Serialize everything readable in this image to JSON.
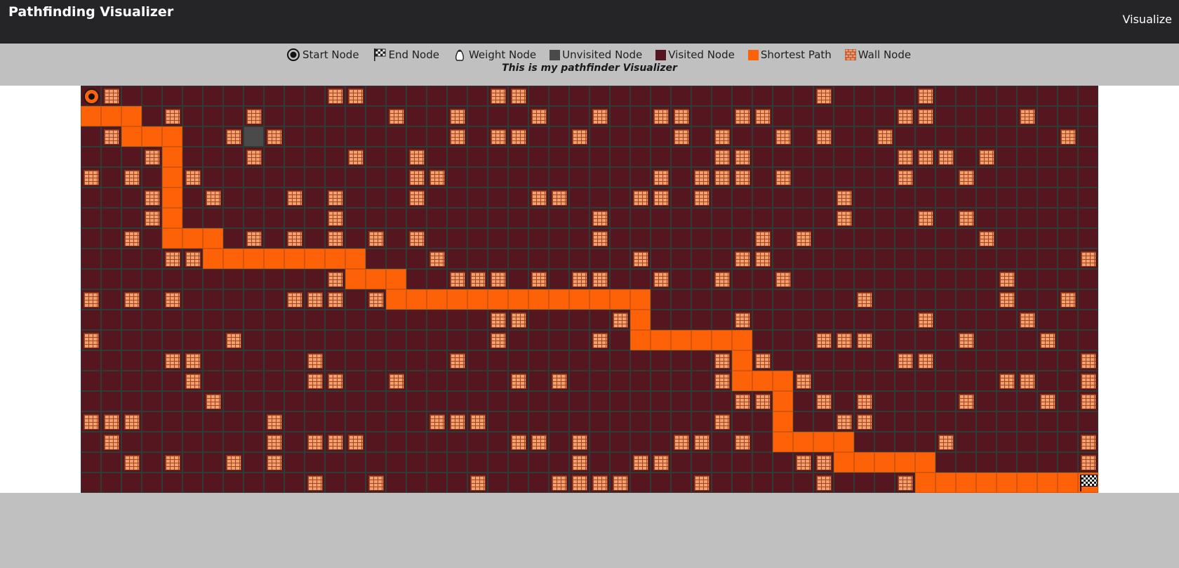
{
  "navbar": {
    "title": "Pathfinding Visualizer",
    "action_label": "Visualize"
  },
  "legend": {
    "start_label": "Start Node",
    "end_label": "End Node",
    "weight_label": "Weight Node",
    "unvisited_label": "Unvisited Node",
    "visited_label": "Visited Node",
    "path_label": "Shortest Path",
    "wall_label": "Wall Node"
  },
  "subtitle": "This is my pathfinder Visualizer",
  "colors": {
    "visited": "#561620",
    "unvisited": "#4a4a4a",
    "path": "#fd6209",
    "wall": "#f2a070",
    "navbar": "#252527"
  },
  "grid": {
    "rows": 20,
    "cols": 50,
    "start": [
      0,
      0
    ],
    "end": [
      19,
      49
    ],
    "unvisited": [
      [
        2,
        8
      ]
    ],
    "walls": [
      [
        0,
        1
      ],
      [
        0,
        12
      ],
      [
        0,
        13
      ],
      [
        0,
        20
      ],
      [
        0,
        21
      ],
      [
        0,
        36
      ],
      [
        0,
        41
      ],
      [
        1,
        4
      ],
      [
        1,
        8
      ],
      [
        1,
        15
      ],
      [
        1,
        18
      ],
      [
        1,
        22
      ],
      [
        1,
        25
      ],
      [
        1,
        28
      ],
      [
        1,
        29
      ],
      [
        1,
        32
      ],
      [
        1,
        33
      ],
      [
        1,
        40
      ],
      [
        1,
        41
      ],
      [
        1,
        46
      ],
      [
        2,
        1
      ],
      [
        2,
        7
      ],
      [
        2,
        9
      ],
      [
        2,
        18
      ],
      [
        2,
        20
      ],
      [
        2,
        21
      ],
      [
        2,
        24
      ],
      [
        2,
        29
      ],
      [
        2,
        31
      ],
      [
        2,
        34
      ],
      [
        2,
        36
      ],
      [
        2,
        39
      ],
      [
        2,
        48
      ],
      [
        3,
        3
      ],
      [
        3,
        8
      ],
      [
        3,
        13
      ],
      [
        3,
        16
      ],
      [
        3,
        31
      ],
      [
        3,
        32
      ],
      [
        3,
        40
      ],
      [
        3,
        41
      ],
      [
        3,
        42
      ],
      [
        3,
        44
      ],
      [
        4,
        0
      ],
      [
        4,
        2
      ],
      [
        4,
        5
      ],
      [
        4,
        16
      ],
      [
        4,
        17
      ],
      [
        4,
        28
      ],
      [
        4,
        30
      ],
      [
        4,
        31
      ],
      [
        4,
        32
      ],
      [
        4,
        34
      ],
      [
        4,
        40
      ],
      [
        4,
        43
      ],
      [
        5,
        3
      ],
      [
        5,
        6
      ],
      [
        5,
        10
      ],
      [
        5,
        12
      ],
      [
        5,
        16
      ],
      [
        5,
        22
      ],
      [
        5,
        23
      ],
      [
        5,
        27
      ],
      [
        5,
        28
      ],
      [
        5,
        30
      ],
      [
        5,
        37
      ],
      [
        6,
        3
      ],
      [
        6,
        12
      ],
      [
        6,
        25
      ],
      [
        6,
        37
      ],
      [
        6,
        41
      ],
      [
        6,
        43
      ],
      [
        7,
        2
      ],
      [
        7,
        8
      ],
      [
        7,
        10
      ],
      [
        7,
        12
      ],
      [
        7,
        14
      ],
      [
        7,
        16
      ],
      [
        7,
        25
      ],
      [
        7,
        33
      ],
      [
        7,
        35
      ],
      [
        7,
        44
      ],
      [
        8,
        4
      ],
      [
        8,
        5
      ],
      [
        8,
        17
      ],
      [
        8,
        27
      ],
      [
        8,
        32
      ],
      [
        8,
        33
      ],
      [
        8,
        49
      ],
      [
        9,
        12
      ],
      [
        9,
        18
      ],
      [
        9,
        19
      ],
      [
        9,
        20
      ],
      [
        9,
        22
      ],
      [
        9,
        24
      ],
      [
        9,
        25
      ],
      [
        9,
        28
      ],
      [
        9,
        31
      ],
      [
        9,
        34
      ],
      [
        9,
        45
      ],
      [
        10,
        0
      ],
      [
        10,
        2
      ],
      [
        10,
        4
      ],
      [
        10,
        10
      ],
      [
        10,
        11
      ],
      [
        10,
        12
      ],
      [
        10,
        14
      ],
      [
        10,
        38
      ],
      [
        10,
        45
      ],
      [
        10,
        48
      ],
      [
        11,
        20
      ],
      [
        11,
        21
      ],
      [
        11,
        26
      ],
      [
        11,
        32
      ],
      [
        11,
        41
      ],
      [
        11,
        46
      ],
      [
        12,
        0
      ],
      [
        12,
        7
      ],
      [
        12,
        20
      ],
      [
        12,
        25
      ],
      [
        12,
        36
      ],
      [
        12,
        37
      ],
      [
        12,
        38
      ],
      [
        12,
        43
      ],
      [
        12,
        47
      ],
      [
        13,
        4
      ],
      [
        13,
        5
      ],
      [
        13,
        11
      ],
      [
        13,
        18
      ],
      [
        13,
        31
      ],
      [
        13,
        33
      ],
      [
        13,
        40
      ],
      [
        13,
        41
      ],
      [
        13,
        49
      ],
      [
        14,
        5
      ],
      [
        14,
        11
      ],
      [
        14,
        12
      ],
      [
        14,
        15
      ],
      [
        14,
        21
      ],
      [
        14,
        23
      ],
      [
        14,
        31
      ],
      [
        14,
        35
      ],
      [
        14,
        45
      ],
      [
        14,
        46
      ],
      [
        14,
        49
      ],
      [
        15,
        6
      ],
      [
        15,
        32
      ],
      [
        15,
        33
      ],
      [
        15,
        36
      ],
      [
        15,
        38
      ],
      [
        15,
        43
      ],
      [
        15,
        47
      ],
      [
        15,
        49
      ],
      [
        16,
        0
      ],
      [
        16,
        1
      ],
      [
        16,
        2
      ],
      [
        16,
        9
      ],
      [
        16,
        17
      ],
      [
        16,
        18
      ],
      [
        16,
        19
      ],
      [
        16,
        31
      ],
      [
        16,
        37
      ],
      [
        16,
        38
      ],
      [
        17,
        1
      ],
      [
        17,
        9
      ],
      [
        17,
        11
      ],
      [
        17,
        12
      ],
      [
        17,
        13
      ],
      [
        17,
        21
      ],
      [
        17,
        22
      ],
      [
        17,
        24
      ],
      [
        17,
        29
      ],
      [
        17,
        30
      ],
      [
        17,
        32
      ],
      [
        17,
        42
      ],
      [
        17,
        49
      ],
      [
        18,
        2
      ],
      [
        18,
        4
      ],
      [
        18,
        7
      ],
      [
        18,
        9
      ],
      [
        18,
        24
      ],
      [
        18,
        27
      ],
      [
        18,
        28
      ],
      [
        18,
        35
      ],
      [
        18,
        36
      ],
      [
        18,
        49
      ],
      [
        19,
        11
      ],
      [
        19,
        14
      ],
      [
        19,
        19
      ],
      [
        19,
        23
      ],
      [
        19,
        24
      ],
      [
        19,
        25
      ],
      [
        19,
        26
      ],
      [
        19,
        30
      ],
      [
        19,
        36
      ],
      [
        19,
        40
      ]
    ],
    "path": [
      [
        1,
        0
      ],
      [
        1,
        1
      ],
      [
        1,
        2
      ],
      [
        2,
        2
      ],
      [
        2,
        3
      ],
      [
        2,
        4
      ],
      [
        3,
        4
      ],
      [
        4,
        4
      ],
      [
        5,
        4
      ],
      [
        6,
        4
      ],
      [
        7,
        4
      ],
      [
        7,
        5
      ],
      [
        7,
        6
      ],
      [
        8,
        6
      ],
      [
        8,
        7
      ],
      [
        8,
        8
      ],
      [
        8,
        9
      ],
      [
        8,
        10
      ],
      [
        8,
        11
      ],
      [
        8,
        12
      ],
      [
        8,
        13
      ],
      [
        9,
        13
      ],
      [
        9,
        14
      ],
      [
        9,
        15
      ],
      [
        10,
        15
      ],
      [
        10,
        16
      ],
      [
        10,
        17
      ],
      [
        10,
        18
      ],
      [
        10,
        19
      ],
      [
        10,
        20
      ],
      [
        10,
        21
      ],
      [
        10,
        22
      ],
      [
        10,
        23
      ],
      [
        10,
        24
      ],
      [
        10,
        25
      ],
      [
        10,
        26
      ],
      [
        10,
        27
      ],
      [
        11,
        27
      ],
      [
        12,
        27
      ],
      [
        12,
        28
      ],
      [
        12,
        29
      ],
      [
        12,
        30
      ],
      [
        12,
        31
      ],
      [
        12,
        32
      ],
      [
        13,
        32
      ],
      [
        14,
        32
      ],
      [
        14,
        33
      ],
      [
        14,
        34
      ],
      [
        15,
        34
      ],
      [
        16,
        34
      ],
      [
        17,
        34
      ],
      [
        17,
        35
      ],
      [
        17,
        36
      ],
      [
        17,
        37
      ],
      [
        18,
        37
      ],
      [
        18,
        38
      ],
      [
        18,
        39
      ],
      [
        18,
        40
      ],
      [
        18,
        41
      ],
      [
        19,
        41
      ],
      [
        19,
        42
      ],
      [
        19,
        43
      ],
      [
        19,
        44
      ],
      [
        19,
        45
      ],
      [
        19,
        46
      ],
      [
        19,
        47
      ],
      [
        19,
        48
      ]
    ]
  }
}
